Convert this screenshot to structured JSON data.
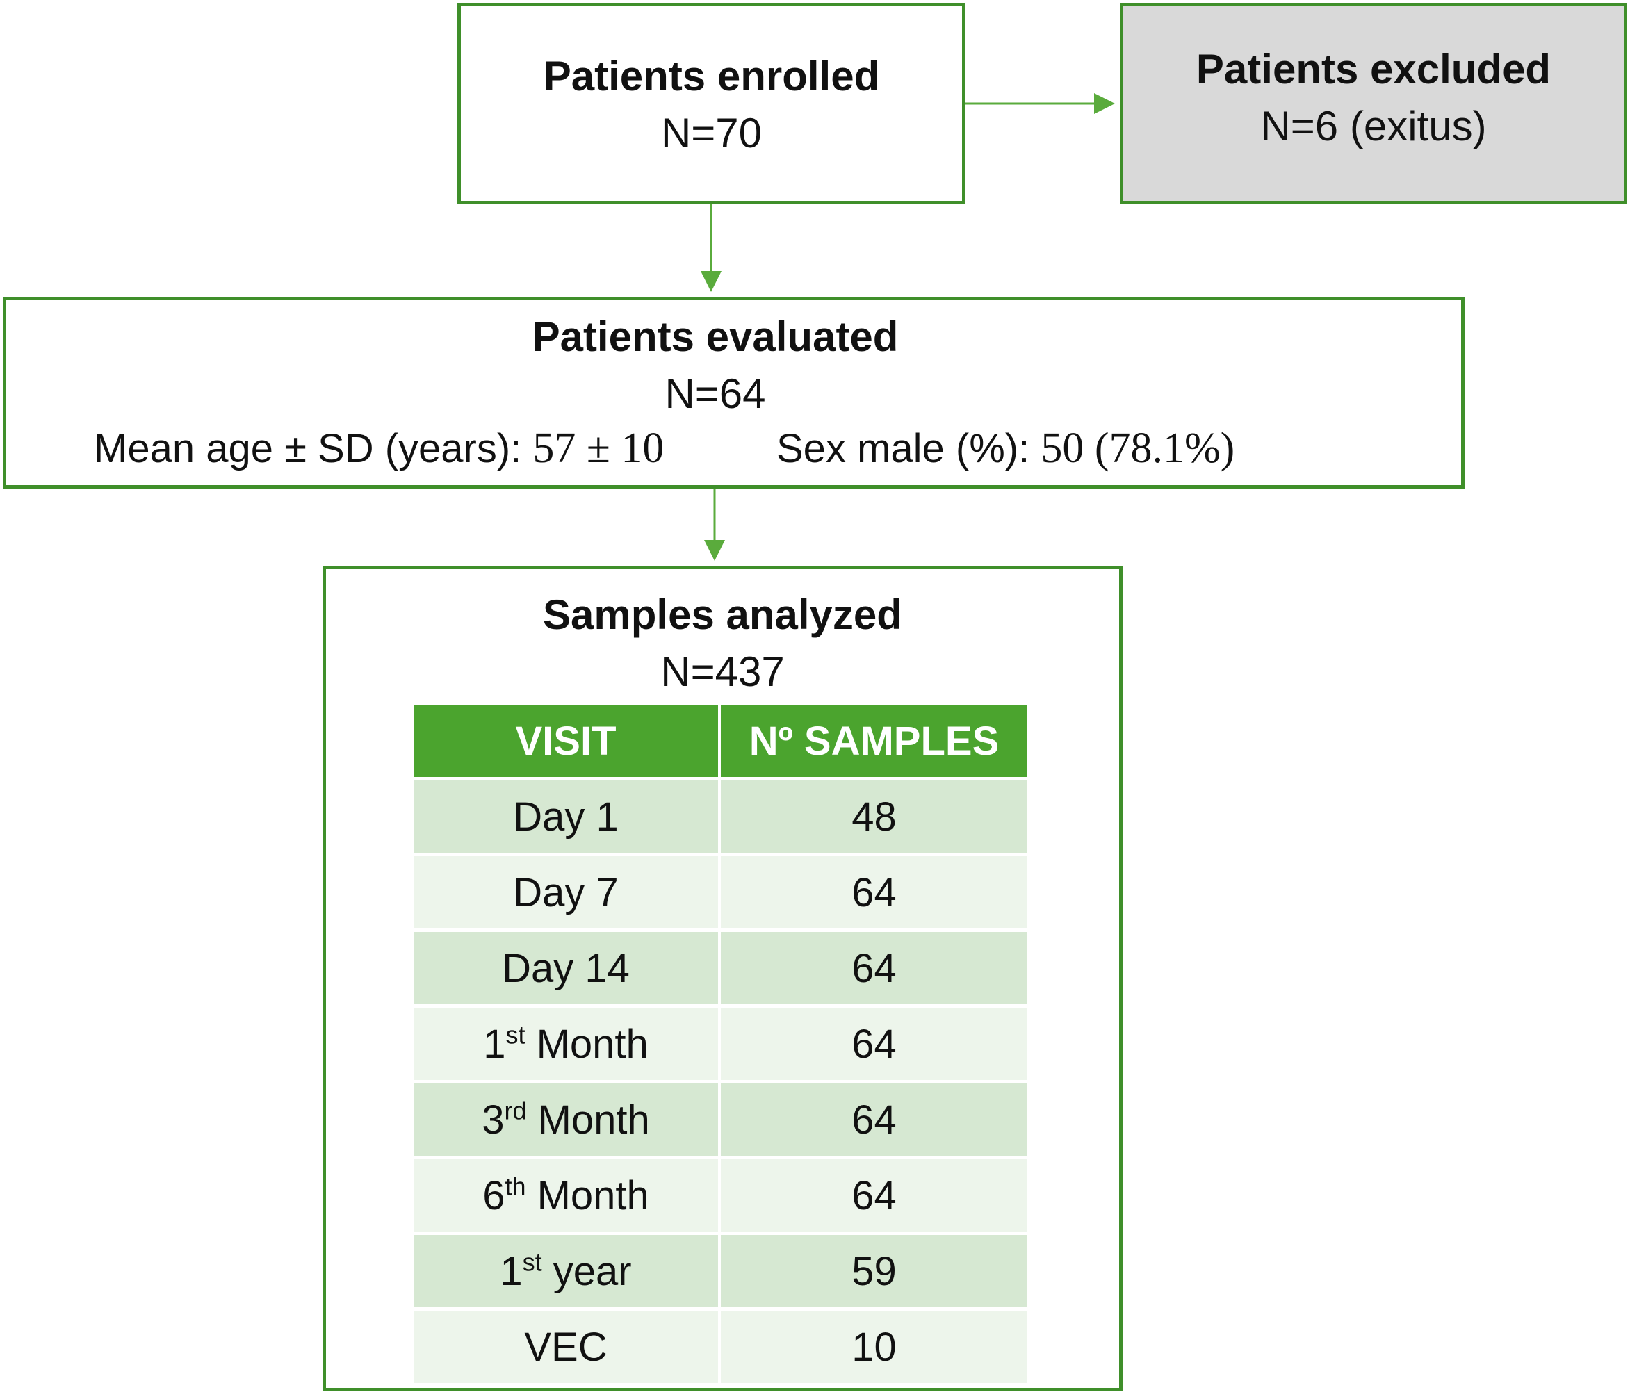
{
  "enrolled": {
    "title": "Patients enrolled",
    "n": "N=70"
  },
  "excluded": {
    "title": "Patients excluded",
    "n": "N=6 (exitus)"
  },
  "evaluated": {
    "title": "Patients evaluated",
    "n": "N=64",
    "age_label": "Mean age ± SD (years): ",
    "age_value": "57 ± 10",
    "sex_label": "Sex male (%): ",
    "sex_value": "50 (78.1%)"
  },
  "samples": {
    "title": "Samples analyzed",
    "n": "N=437",
    "headers": [
      "VISIT",
      "Nº SAMPLES"
    ],
    "rows": [
      {
        "visit": "Day 1",
        "visit_sup": "",
        "visit_rest": "",
        "count": "48"
      },
      {
        "visit": "Day 7",
        "visit_sup": "",
        "visit_rest": "",
        "count": "64"
      },
      {
        "visit": "Day 14",
        "visit_sup": "",
        "visit_rest": "",
        "count": "64"
      },
      {
        "visit": "1",
        "visit_sup": "st",
        "visit_rest": " Month",
        "count": "64"
      },
      {
        "visit": "3",
        "visit_sup": "rd",
        "visit_rest": " Month",
        "count": "64"
      },
      {
        "visit": "6",
        "visit_sup": "th",
        "visit_rest": " Month",
        "count": "64"
      },
      {
        "visit": "1",
        "visit_sup": "st",
        "visit_rest": " year",
        "count": "59"
      },
      {
        "visit": "VEC",
        "visit_sup": "",
        "visit_rest": "",
        "count": "10"
      }
    ]
  },
  "colors": {
    "border_green": "#3f8f2a",
    "header_green": "#4ba42e",
    "row_dark": "#d6e8d2",
    "row_light": "#edf5eb",
    "excluded_fill": "#d9d9d9"
  }
}
